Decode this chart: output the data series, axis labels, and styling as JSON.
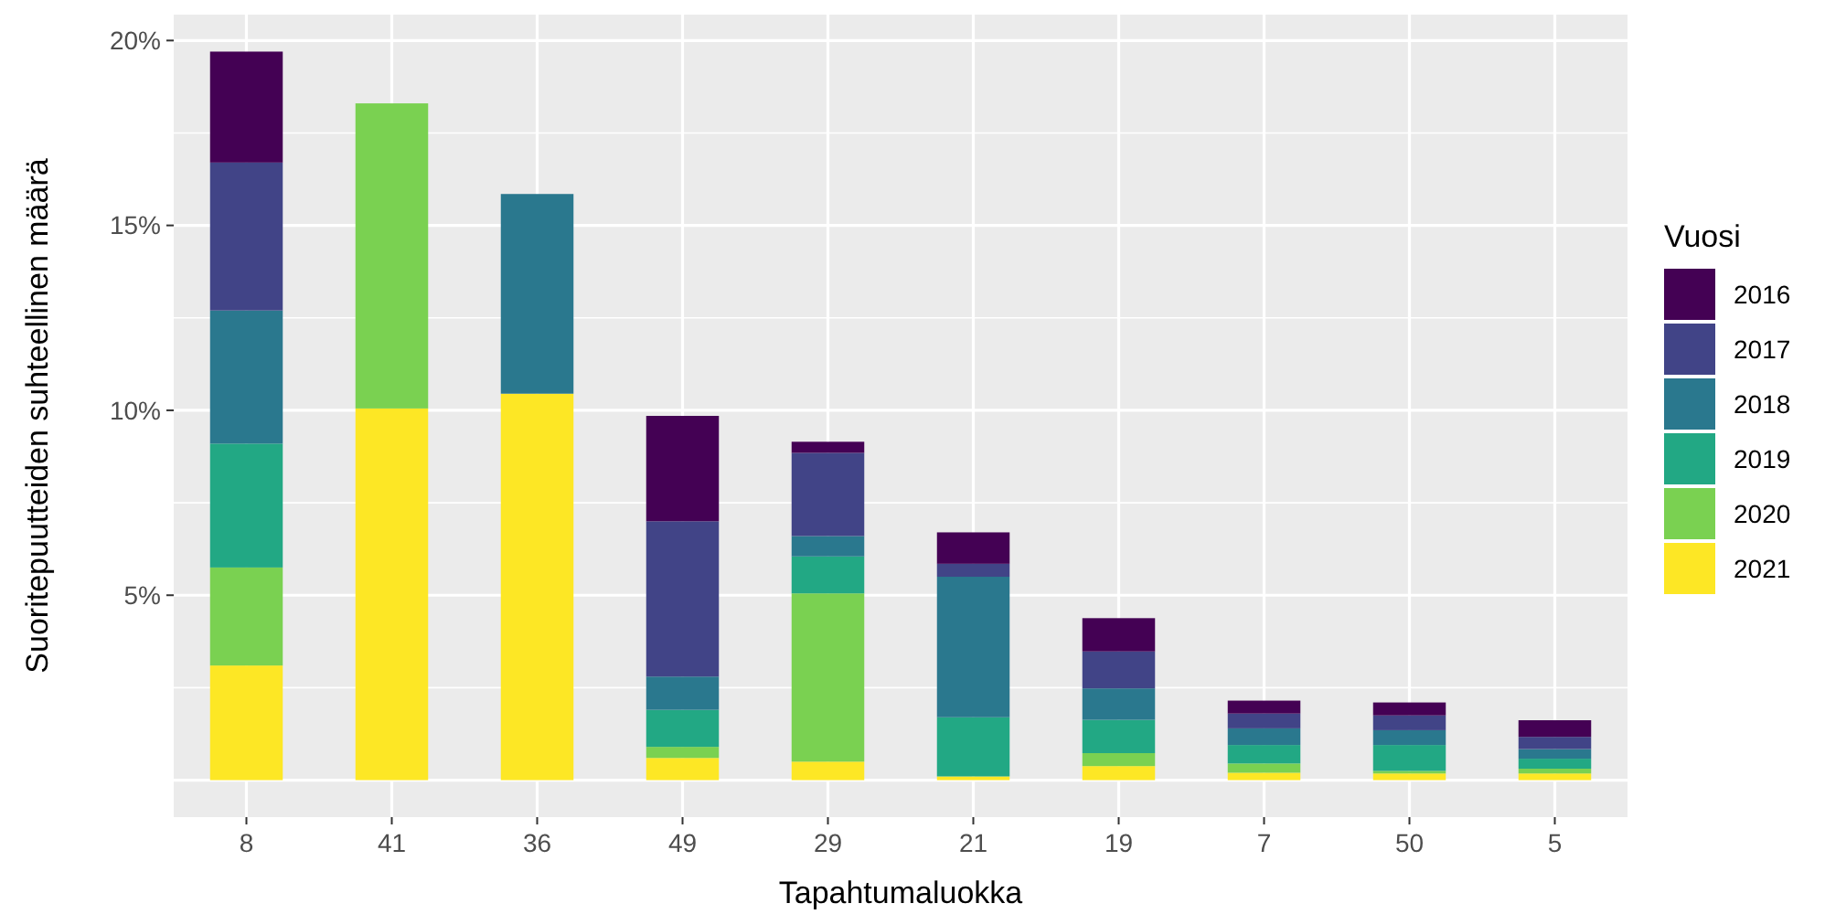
{
  "chart_data": {
    "type": "bar",
    "stacked": true,
    "xlabel": "Tapahtumaluokka",
    "ylabel": "Suoritepuutteiden suhteellinen määrä",
    "legend_title": "Vuosi",
    "legend": "right",
    "grid": true,
    "categories": [
      "8",
      "41",
      "36",
      "49",
      "29",
      "21",
      "19",
      "7",
      "50",
      "5"
    ],
    "ylim": [
      -1,
      20.7
    ],
    "yticks": [
      {
        "value": 0,
        "label": null
      },
      {
        "value": 2.5,
        "label": null
      },
      {
        "value": 5,
        "label": "5%"
      },
      {
        "value": 7.5,
        "label": null
      },
      {
        "value": 10,
        "label": "10%"
      },
      {
        "value": 12.5,
        "label": null
      },
      {
        "value": 15,
        "label": "15%"
      },
      {
        "value": 17.5,
        "label": null
      },
      {
        "value": 20,
        "label": "20%"
      }
    ],
    "series": [
      {
        "name": "2021",
        "color": "#fde725",
        "values": [
          3.1,
          10.05,
          10.45,
          0.6,
          0.5,
          0.1,
          0.38,
          0.2,
          0.18,
          0.18
        ]
      },
      {
        "name": "2020",
        "color": "#7ad151",
        "values": [
          2.65,
          8.25,
          0,
          0.3,
          4.55,
          0,
          0.35,
          0.25,
          0.07,
          0.13
        ]
      },
      {
        "name": "2019",
        "color": "#22a884",
        "values": [
          3.35,
          0,
          0,
          1.0,
          1.0,
          1.6,
          0.9,
          0.5,
          0.7,
          0.27
        ]
      },
      {
        "name": "2018",
        "color": "#2a788e",
        "values": [
          3.6,
          0,
          5.4,
          0.9,
          0.55,
          3.8,
          0.85,
          0.45,
          0.4,
          0.26
        ]
      },
      {
        "name": "2017",
        "color": "#414487",
        "values": [
          4.0,
          0,
          0,
          4.2,
          2.25,
          0.35,
          1.0,
          0.4,
          0.4,
          0.33
        ]
      },
      {
        "name": "2016",
        "color": "#440154",
        "values": [
          3.0,
          0,
          0,
          2.85,
          0.3,
          0.85,
          0.9,
          0.35,
          0.35,
          0.45
        ]
      }
    ]
  }
}
